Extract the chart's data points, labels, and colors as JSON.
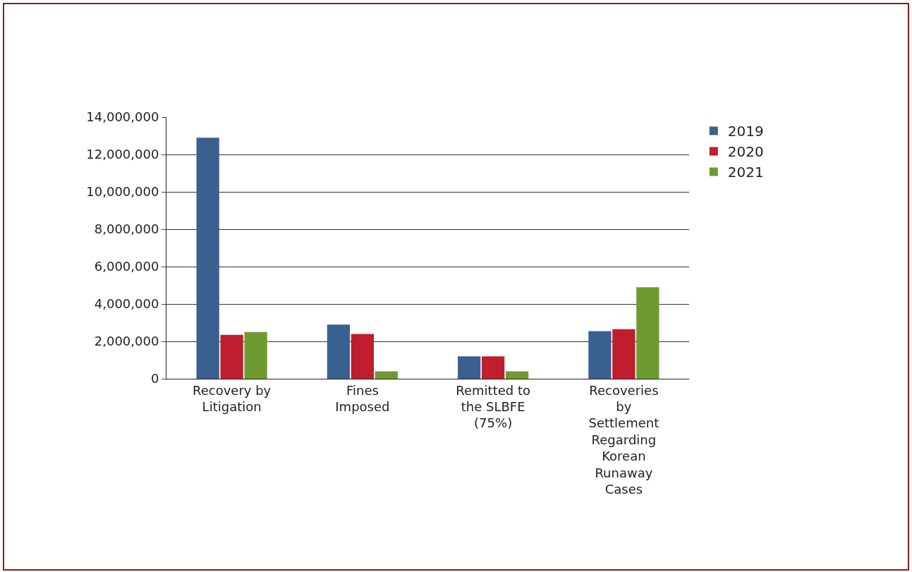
{
  "chart_data": {
    "type": "bar",
    "categories": [
      "Recovery by Litigation",
      "Fines Imposed",
      "Remitted to the SLBFE (75%)",
      "Recoveries by Settlement Regarding Korean Runaway Cases"
    ],
    "series": [
      {
        "name": "2019",
        "color": "#3a6090",
        "values": [
          12900000,
          2900000,
          1200000,
          2550000
        ]
      },
      {
        "name": "2020",
        "color": "#be1e2d",
        "values": [
          2350000,
          2400000,
          1200000,
          2650000
        ]
      },
      {
        "name": "2021",
        "color": "#6f9a32",
        "values": [
          2500000,
          400000,
          400000,
          4900000
        ]
      }
    ],
    "ylim": [
      0,
      14000000
    ],
    "yticks": [
      0,
      {
        "value": 2000000,
        "label": "2,000,000"
      },
      {
        "value": 4000000,
        "label": "4,000,000"
      },
      {
        "value": 6000000,
        "label": "6,000,000"
      },
      {
        "value": 8000000,
        "label": "8,000,000"
      },
      {
        "value": 10000000,
        "label": "10,000,000"
      },
      {
        "value": 12000000,
        "label": "12,000,000"
      },
      {
        "value": 14000000,
        "label": "14,000,000"
      }
    ],
    "grid": "y",
    "legend": "top right"
  }
}
